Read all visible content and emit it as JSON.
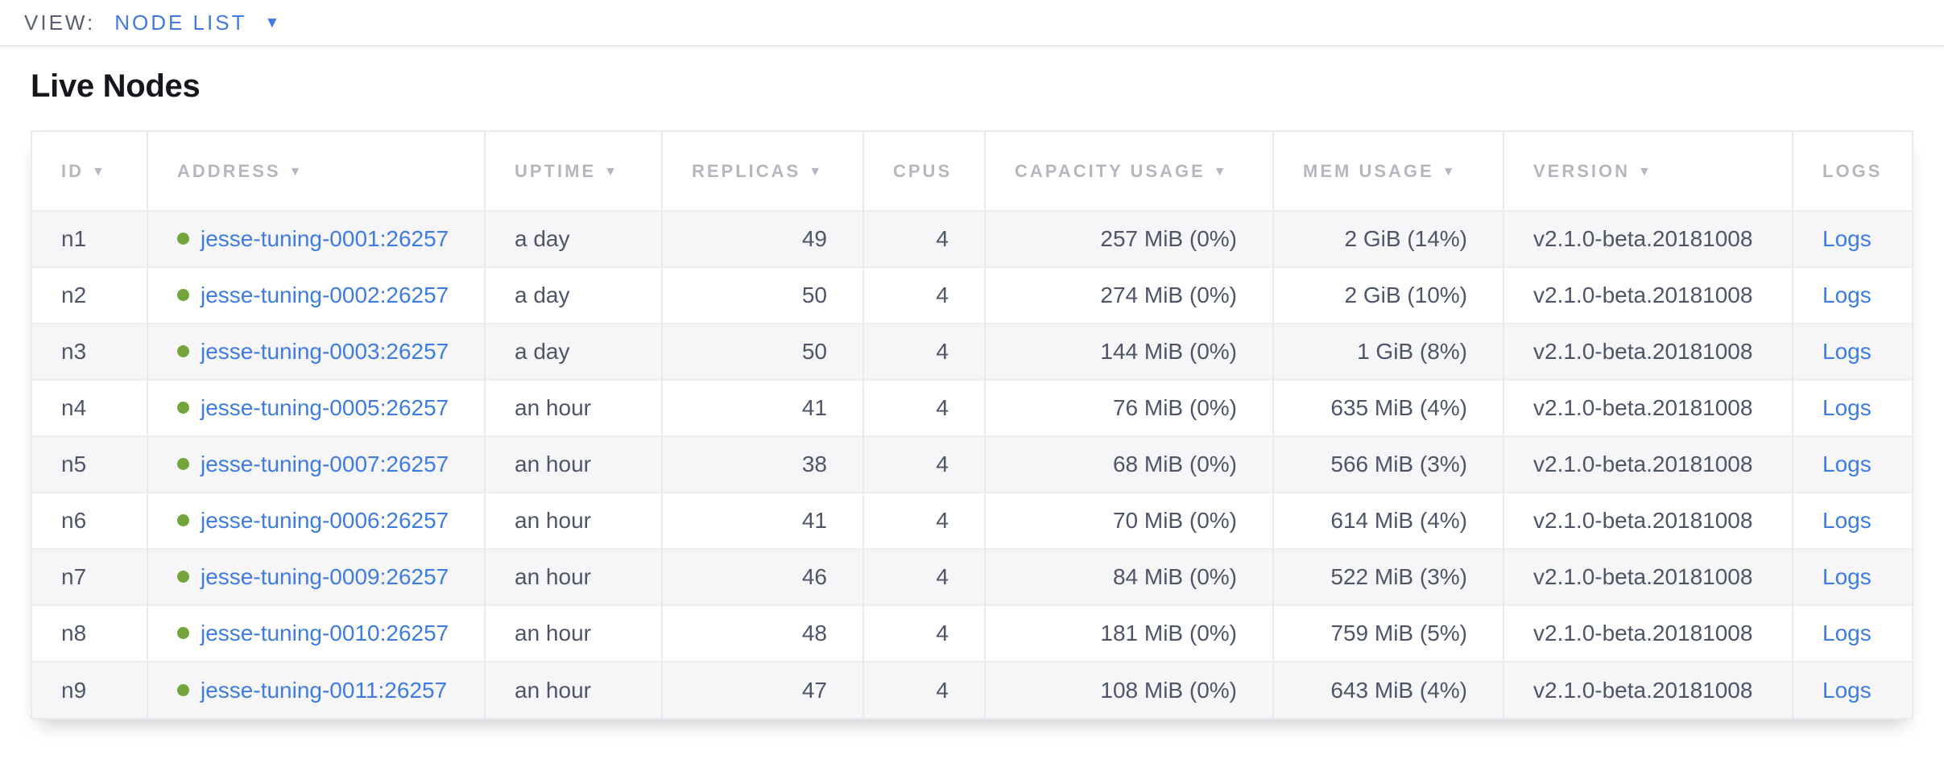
{
  "view_bar": {
    "label": "VIEW:",
    "selected_view": "NODE LIST",
    "dropdown_icon": "▼"
  },
  "page": {
    "title": "Live Nodes"
  },
  "icons": {
    "sort_arrow": "▼",
    "status_healthy_dot": "●"
  },
  "colors": {
    "link_blue": "#3e7ce1",
    "accent_blue": "#4379e2",
    "healthy_green": "#72a63c",
    "header_gray": "#b4b7bf",
    "text_slate": "#4d5568",
    "striped_row_bg": "#f6f6f8"
  },
  "table": {
    "columns": [
      {
        "key": "id",
        "label": "ID",
        "sortable": true,
        "align": "left"
      },
      {
        "key": "address",
        "label": "ADDRESS",
        "sortable": true,
        "align": "left"
      },
      {
        "key": "uptime",
        "label": "UPTIME",
        "sortable": true,
        "align": "left"
      },
      {
        "key": "replicas",
        "label": "REPLICAS",
        "sortable": true,
        "align": "right"
      },
      {
        "key": "cpus",
        "label": "CPUS",
        "sortable": false,
        "align": "right"
      },
      {
        "key": "capacity",
        "label": "CAPACITY USAGE",
        "sortable": true,
        "align": "right"
      },
      {
        "key": "mem",
        "label": "MEM USAGE",
        "sortable": true,
        "align": "right"
      },
      {
        "key": "version",
        "label": "VERSION",
        "sortable": true,
        "align": "left"
      },
      {
        "key": "logs",
        "label": "LOGS",
        "sortable": false,
        "align": "left"
      }
    ],
    "rows": [
      {
        "id": "n1",
        "status": "healthy",
        "address": "jesse-tuning-0001:26257",
        "uptime": "a day",
        "replicas": "49",
        "cpus": "4",
        "capacity": "257 MiB (0%)",
        "mem": "2 GiB (14%)",
        "version": "v2.1.0-beta.20181008",
        "logs": "Logs"
      },
      {
        "id": "n2",
        "status": "healthy",
        "address": "jesse-tuning-0002:26257",
        "uptime": "a day",
        "replicas": "50",
        "cpus": "4",
        "capacity": "274 MiB (0%)",
        "mem": "2 GiB (10%)",
        "version": "v2.1.0-beta.20181008",
        "logs": "Logs"
      },
      {
        "id": "n3",
        "status": "healthy",
        "address": "jesse-tuning-0003:26257",
        "uptime": "a day",
        "replicas": "50",
        "cpus": "4",
        "capacity": "144 MiB (0%)",
        "mem": "1 GiB (8%)",
        "version": "v2.1.0-beta.20181008",
        "logs": "Logs"
      },
      {
        "id": "n4",
        "status": "healthy",
        "address": "jesse-tuning-0005:26257",
        "uptime": "an hour",
        "replicas": "41",
        "cpus": "4",
        "capacity": "76 MiB (0%)",
        "mem": "635 MiB (4%)",
        "version": "v2.1.0-beta.20181008",
        "logs": "Logs"
      },
      {
        "id": "n5",
        "status": "healthy",
        "address": "jesse-tuning-0007:26257",
        "uptime": "an hour",
        "replicas": "38",
        "cpus": "4",
        "capacity": "68 MiB (0%)",
        "mem": "566 MiB (3%)",
        "version": "v2.1.0-beta.20181008",
        "logs": "Logs"
      },
      {
        "id": "n6",
        "status": "healthy",
        "address": "jesse-tuning-0006:26257",
        "uptime": "an hour",
        "replicas": "41",
        "cpus": "4",
        "capacity": "70 MiB (0%)",
        "mem": "614 MiB (4%)",
        "version": "v2.1.0-beta.20181008",
        "logs": "Logs"
      },
      {
        "id": "n7",
        "status": "healthy",
        "address": "jesse-tuning-0009:26257",
        "uptime": "an hour",
        "replicas": "46",
        "cpus": "4",
        "capacity": "84 MiB (0%)",
        "mem": "522 MiB (3%)",
        "version": "v2.1.0-beta.20181008",
        "logs": "Logs"
      },
      {
        "id": "n8",
        "status": "healthy",
        "address": "jesse-tuning-0010:26257",
        "uptime": "an hour",
        "replicas": "48",
        "cpus": "4",
        "capacity": "181 MiB (0%)",
        "mem": "759 MiB (5%)",
        "version": "v2.1.0-beta.20181008",
        "logs": "Logs"
      },
      {
        "id": "n9",
        "status": "healthy",
        "address": "jesse-tuning-0011:26257",
        "uptime": "an hour",
        "replicas": "47",
        "cpus": "4",
        "capacity": "108 MiB (0%)",
        "mem": "643 MiB (4%)",
        "version": "v2.1.0-beta.20181008",
        "logs": "Logs"
      }
    ]
  }
}
